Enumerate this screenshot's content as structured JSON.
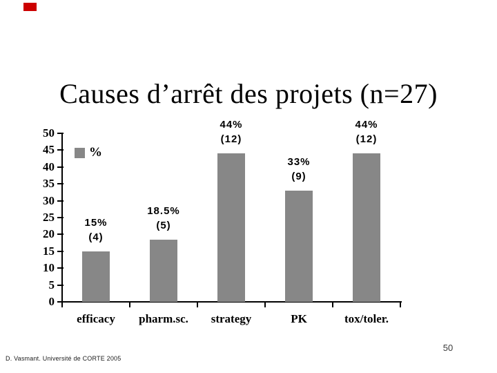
{
  "slide": {
    "title": "Causes d’arrêt des projets (n=27)",
    "footer": "D. Vasmant. Université de CORTE 2005",
    "page_number": "50",
    "corner_mark_color": "#cc0000",
    "background_color": "#ffffff"
  },
  "chart_data": {
    "type": "bar",
    "title": "",
    "xlabel": "",
    "ylabel": "",
    "categories": [
      "efficacy",
      "pharm.sc.",
      "strategy",
      "PK",
      "tox/toler."
    ],
    "values": [
      15,
      18.5,
      44,
      33,
      44
    ],
    "counts": [
      4,
      5,
      12,
      9,
      12
    ],
    "bar_labels": [
      [
        "15%",
        "(4)"
      ],
      [
        "18.5%",
        "(5)"
      ],
      [
        "44%",
        "(12)"
      ],
      [
        "33%",
        "(9)"
      ],
      [
        "44%",
        "(12)"
      ]
    ],
    "legend_label": "%",
    "legend_position": "inside-top-left",
    "bar_color": "#878787",
    "axis_color": "#000000",
    "ylim": [
      0,
      50
    ],
    "yticks": [
      0,
      5,
      10,
      15,
      20,
      25,
      30,
      35,
      40,
      45,
      50
    ],
    "grid": false
  }
}
